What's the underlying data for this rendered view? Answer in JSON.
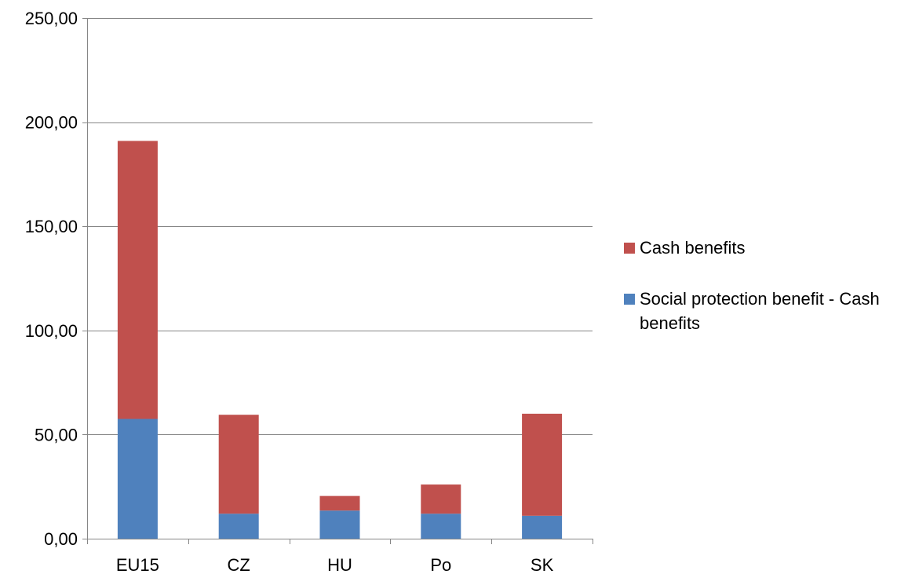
{
  "chart_data": {
    "type": "bar",
    "stacked": true,
    "categories": [
      "EU15",
      "CZ",
      "HU",
      "Po",
      "SK"
    ],
    "series": [
      {
        "name": "Social protection benefit - Cash benefits",
        "color": "#4f81bd",
        "values": [
          57.5,
          12.0,
          13.5,
          12.0,
          11.0
        ]
      },
      {
        "name": "Cash benefits",
        "color": "#c0504d",
        "values": [
          133.5,
          47.5,
          7.0,
          14.0,
          49.0
        ]
      }
    ],
    "ylim": [
      0,
      250
    ],
    "yticks": [
      0,
      50,
      100,
      150,
      200,
      250
    ],
    "ytick_labels": [
      "0,00",
      "50,00",
      "100,00",
      "150,00",
      "200,00",
      "250,00"
    ],
    "grid": true,
    "legend_position": "right",
    "title": "",
    "xlabel": "",
    "ylabel": ""
  }
}
